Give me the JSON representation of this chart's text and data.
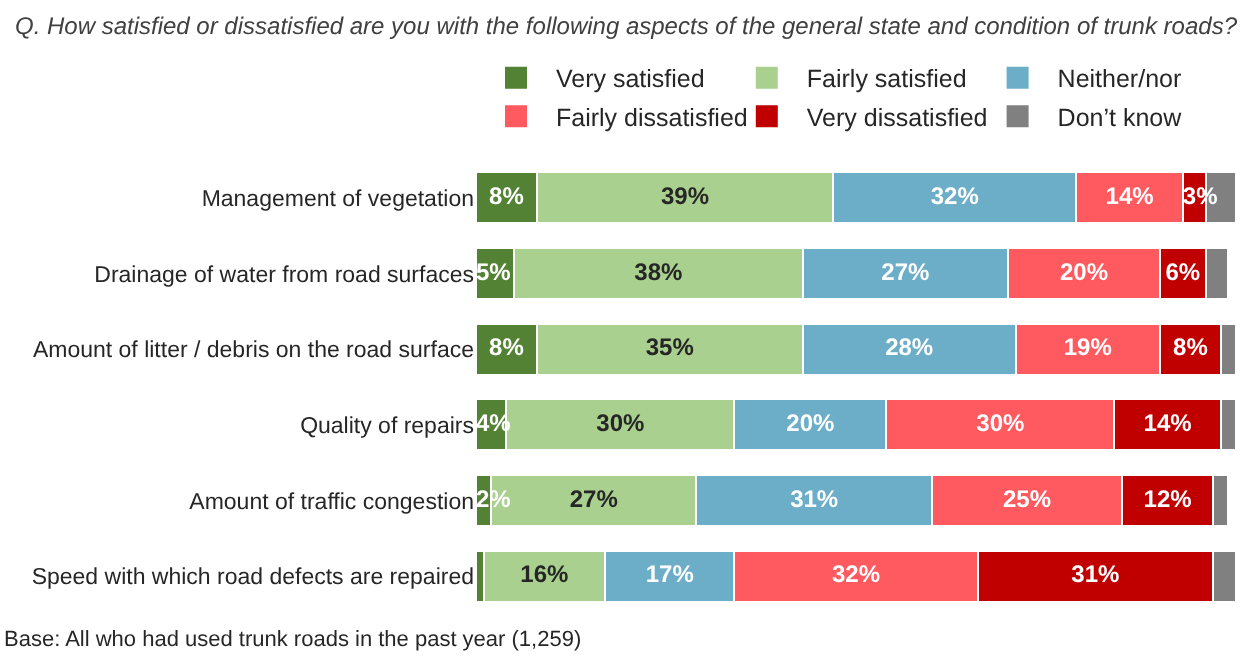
{
  "chart_data": {
    "type": "bar",
    "orientation": "horizontal",
    "stacked": true,
    "title": "Q. How satisfied or dissatisfied are you with the following aspects of the general state and condition of trunk roads?",
    "categories": [
      "Management of vegetation",
      "Drainage of water from road surfaces",
      "Amount of litter / debris on the road surface",
      "Quality of repairs",
      "Amount of traffic congestion",
      "Speed with which road defects are repaired"
    ],
    "series": [
      {
        "name": "Very satisfied",
        "color": "#548235",
        "values": [
          8,
          5,
          8,
          4,
          2,
          1
        ],
        "value_labels": [
          "8%",
          "5%",
          "8%",
          "4%",
          "2%",
          null
        ]
      },
      {
        "name": "Fairly satisfied",
        "color": "#a9d08e",
        "values": [
          39,
          38,
          35,
          30,
          27,
          16
        ],
        "value_labels": [
          "39%",
          "38%",
          "35%",
          "30%",
          "27%",
          "16%"
        ]
      },
      {
        "name": "Neither/nor",
        "color": "#6caec7",
        "values": [
          32,
          27,
          28,
          20,
          31,
          17
        ],
        "value_labels": [
          "32%",
          "27%",
          "28%",
          "20%",
          "31%",
          "17%"
        ]
      },
      {
        "name": "Fairly dissatisfied",
        "color": "#ff5a5f",
        "values": [
          14,
          20,
          19,
          30,
          25,
          32
        ],
        "value_labels": [
          "14%",
          "20%",
          "19%",
          "30%",
          "25%",
          "32%"
        ]
      },
      {
        "name": "Very dissatisfied",
        "color": "#c00000",
        "values": [
          3,
          6,
          8,
          14,
          12,
          31
        ],
        "value_labels": [
          "3%",
          "6%",
          "8%",
          "14%",
          "12%",
          "31%"
        ]
      },
      {
        "name": "Don’t know",
        "color": "#808080",
        "values": [
          4,
          3,
          2,
          2,
          2,
          3
        ],
        "value_labels": [
          null,
          null,
          null,
          null,
          null,
          null
        ]
      }
    ],
    "xlim": [
      0,
      100
    ],
    "tick_labels": false,
    "legend": "top",
    "annotations": [
      "Base: All who had used trunk roads in the past year (1,259)"
    ]
  }
}
